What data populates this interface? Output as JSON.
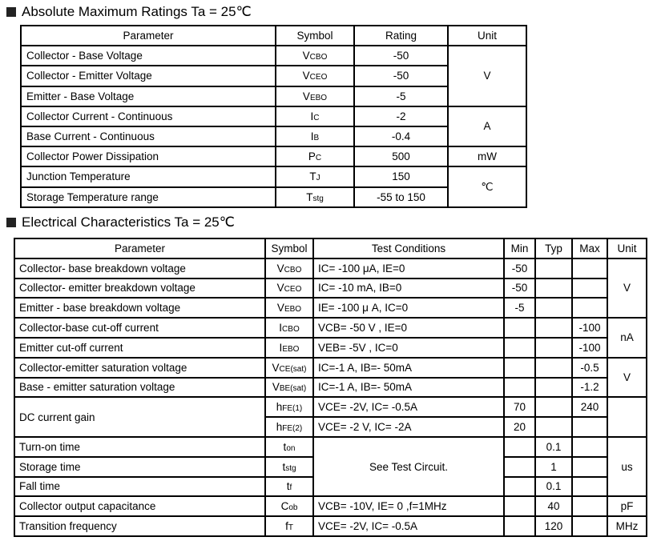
{
  "section1": {
    "title": "Absolute Maximum Ratings Ta = 25℃"
  },
  "section2": {
    "title": "Electrical Characteristics Ta = 25℃"
  },
  "t1": {
    "headers": [
      "Parameter",
      "Symbol",
      "Rating",
      "Unit"
    ],
    "rows": [
      {
        "param": "Collector - Base Voltage",
        "sym": {
          "m": "V",
          "s": "CBO"
        },
        "rating": "-50"
      },
      {
        "param": "Collector - Emitter Voltage",
        "sym": {
          "m": "V",
          "s": "CEO"
        },
        "rating": "-50"
      },
      {
        "param": "Emitter - Base Voltage",
        "sym": {
          "m": "V",
          "s": "EBO"
        },
        "rating": "-5"
      },
      {
        "param": "Collector Current  - Continuous",
        "sym": {
          "m": "I",
          "s": "C"
        },
        "rating": "-2"
      },
      {
        "param": "Base Current  - Continuous",
        "sym": {
          "m": "I",
          "s": "B"
        },
        "rating": "-0.4"
      },
      {
        "param": "Collector Power Dissipation",
        "sym": {
          "m": "P",
          "s": "C"
        },
        "rating": "500"
      },
      {
        "param": "Junction Temperature",
        "sym": {
          "m": "T",
          "s": "J"
        },
        "rating": "150"
      },
      {
        "param": "Storage Temperature range",
        "sym": {
          "m": "T",
          "s": "stg"
        },
        "rating": "-55 to 150"
      }
    ],
    "units": [
      {
        "label": "V",
        "rows": 3
      },
      {
        "label": "A",
        "rows": 2
      },
      {
        "label": "mW",
        "rows": 1
      },
      {
        "label": "℃",
        "rows": 2
      }
    ]
  },
  "t2": {
    "headers": [
      "Parameter",
      "Symbol",
      "Test Conditions",
      "Min",
      "Typ",
      "Max",
      "Unit"
    ],
    "rows": [
      {
        "param": "Collector- base breakdown voltage",
        "sym": {
          "m": "V",
          "s": "CBO"
        },
        "cond": "IC= -100 μA,   IE=0",
        "min": "-50",
        "typ": "",
        "max": ""
      },
      {
        "param": "Collector- emitter breakdown voltage",
        "sym": {
          "m": "V",
          "s": "CEO"
        },
        "cond": "IC= -10 mA,   IB=0",
        "min": "-50",
        "typ": "",
        "max": ""
      },
      {
        "param": "Emitter - base breakdown voltage",
        "sym": {
          "m": "V",
          "s": "EBO"
        },
        "cond": "IE= -100 μ A,   IC=0",
        "min": "-5",
        "typ": "",
        "max": ""
      },
      {
        "param": "Collector-base cut-off current",
        "sym": {
          "m": "I",
          "s": "CBO"
        },
        "cond": "VCB= -50 V , IE=0",
        "min": "",
        "typ": "",
        "max": "-100"
      },
      {
        "param": "Emitter cut-off current",
        "sym": {
          "m": "I",
          "s": "EBO"
        },
        "cond": "VEB= -5V , IC=0",
        "min": "",
        "typ": "",
        "max": "-100"
      },
      {
        "param": "Collector-emitter saturation voltage",
        "sym": {
          "m": "V",
          "s": "CE(sat)"
        },
        "cond": "IC=-1 A, IB=- 50mA",
        "min": "",
        "typ": "",
        "max": "-0.5"
      },
      {
        "param": "Base - emitter saturation voltage",
        "sym": {
          "m": "V",
          "s": "BE(sat)"
        },
        "cond": "IC=-1 A, IB=- 50mA",
        "min": "",
        "typ": "",
        "max": "-1.2"
      },
      {
        "param": "DC current gain",
        "param_rows": 2,
        "sym": {
          "m": "h",
          "s": "FE(1)"
        },
        "cond": "VCE= -2V, IC= -0.5A",
        "min": "70",
        "typ": "",
        "max": "240"
      },
      {
        "sym": {
          "m": "h",
          "s": "FE(2)"
        },
        "cond": "VCE= -2 V, IC= -2A",
        "min": "20",
        "typ": "",
        "max": ""
      },
      {
        "param": "Turn-on  time",
        "sym": {
          "m": "t",
          "s": "on"
        },
        "cond": "See Test Circuit.",
        "cond_rows": 3,
        "min": "",
        "typ": "0.1",
        "max": ""
      },
      {
        "param": "Storage  time",
        "sym": {
          "m": "t",
          "s": "stg"
        },
        "min": "",
        "typ": "1",
        "max": ""
      },
      {
        "param": "Fall time",
        "sym": {
          "m": "t",
          "s": "f"
        },
        "min": "",
        "typ": "0.1",
        "max": ""
      },
      {
        "param": "Collector output capacitance",
        "sym": {
          "m": "C",
          "s": "ob"
        },
        "cond": "VCB= -10V, IE= 0 ,f=1MHz",
        "min": "",
        "typ": "40",
        "max": ""
      },
      {
        "param": "Transition frequency",
        "sym": {
          "m": "f",
          "s": "T"
        },
        "cond": "VCE= -2V, IC= -0.5A",
        "min": "",
        "typ": "120",
        "max": ""
      }
    ],
    "units": [
      {
        "label": "V",
        "rows": 3
      },
      {
        "label": "nA",
        "rows": 2
      },
      {
        "label": "V",
        "rows": 2
      },
      {
        "label": "",
        "rows": 2
      },
      {
        "label": "us",
        "rows": 3
      },
      {
        "label": "pF",
        "rows": 1
      },
      {
        "label": "MHz",
        "rows": 1
      }
    ]
  }
}
